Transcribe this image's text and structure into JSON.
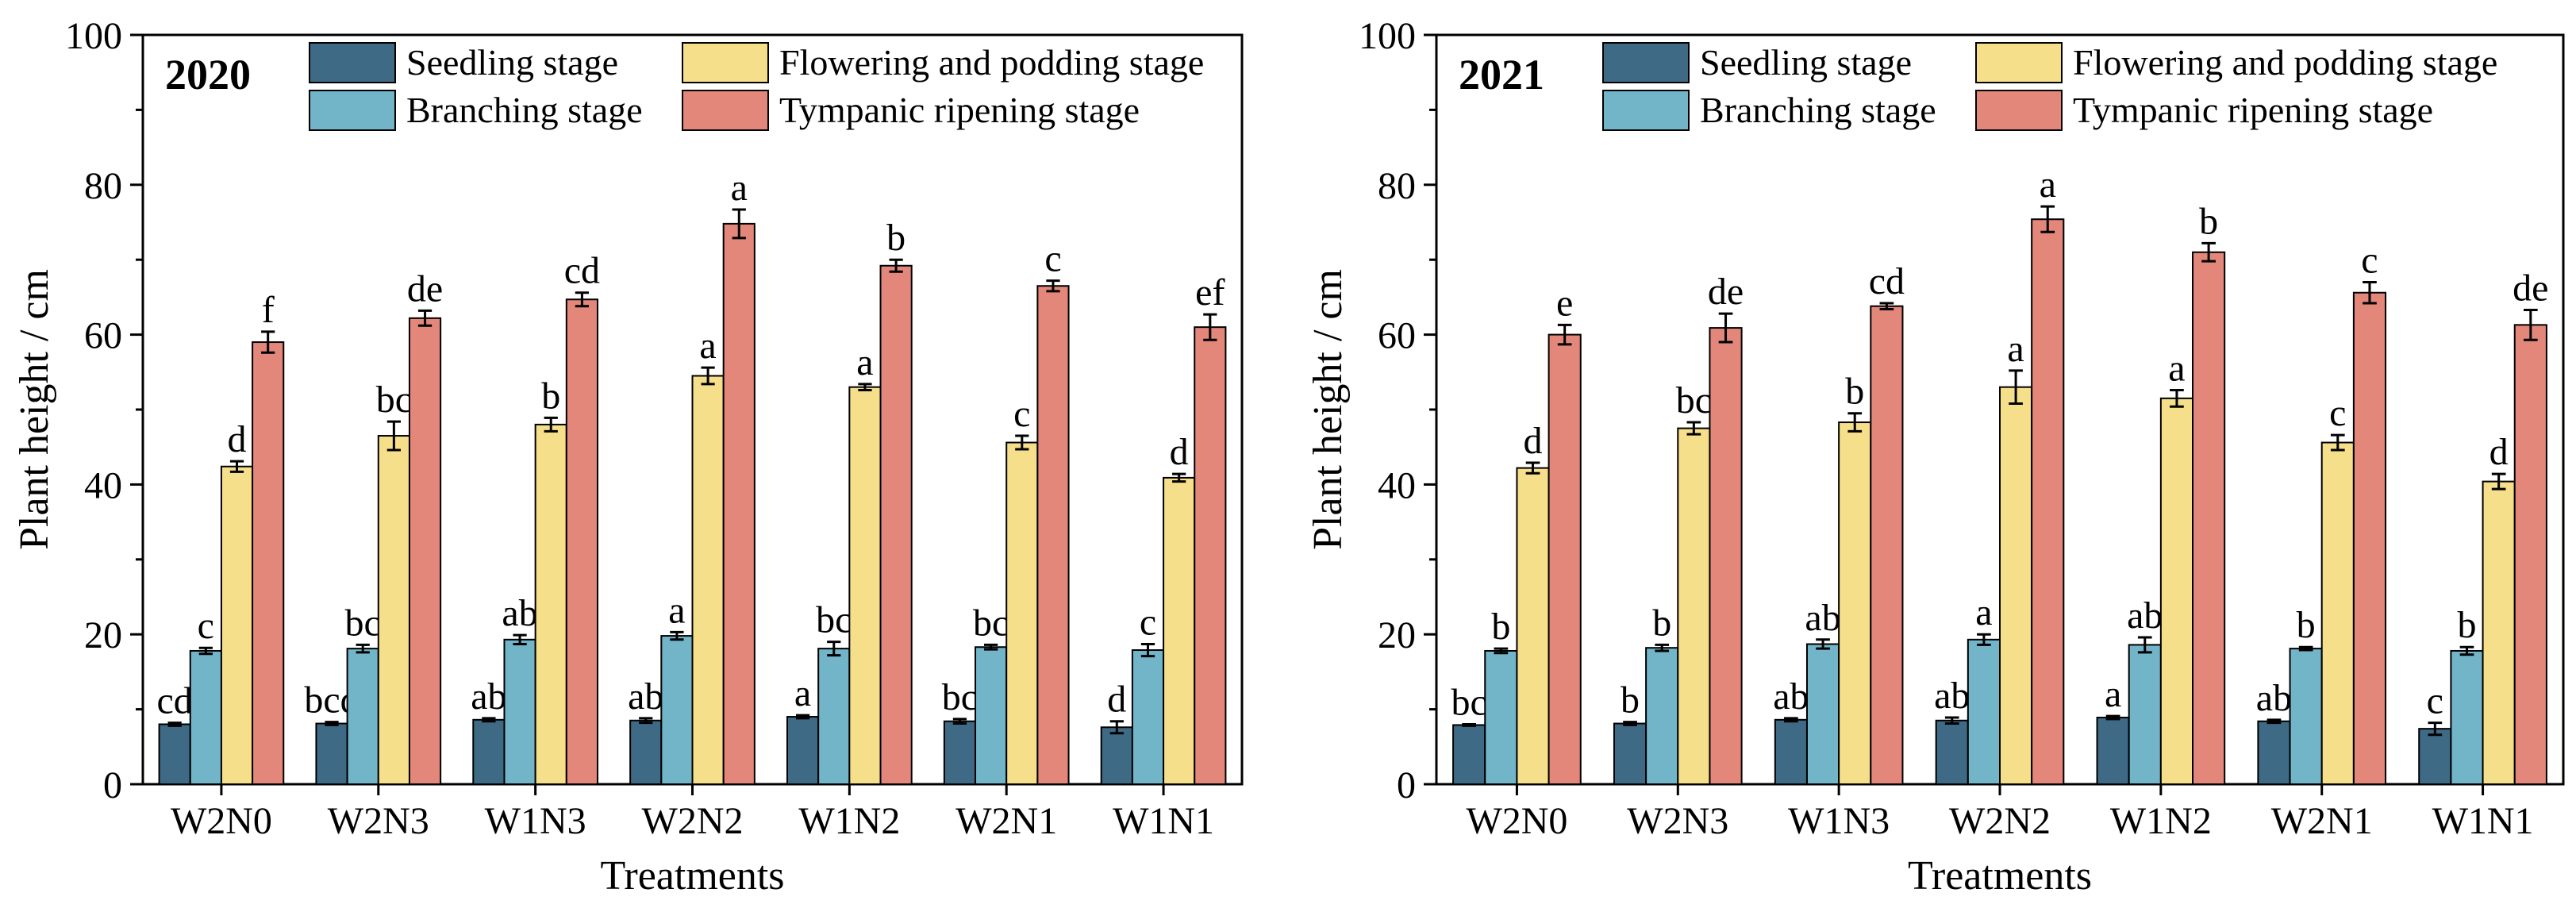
{
  "colors": {
    "Seedling stage": "#3f6a85",
    "Branching stage": "#72b5c9",
    "Flowering and podding stage": "#f6df8a",
    "Tympanic ripening stage": "#e3877a"
  },
  "chart_data": [
    {
      "type": "bar",
      "title": "2020",
      "xlabel": "Treatments",
      "ylabel": "Plant height / cm",
      "ylim": [
        0,
        100
      ],
      "yticks": [
        0,
        20,
        40,
        60,
        80,
        100
      ],
      "legend": "top",
      "categories": [
        "W2N0",
        "W2N3",
        "W1N3",
        "W2N2",
        "W1N2",
        "W2N1",
        "W1N1"
      ],
      "series": [
        {
          "name": "Seedling stage",
          "values": [
            8.0,
            8.1,
            8.6,
            8.5,
            9.0,
            8.4,
            7.6
          ],
          "errors": [
            0.2,
            0.2,
            0.2,
            0.3,
            0.2,
            0.3,
            0.8
          ],
          "labels": [
            "cd",
            "bcd",
            "ab",
            "ab",
            "a",
            "bc",
            "d"
          ]
        },
        {
          "name": "Branching stage",
          "values": [
            17.8,
            18.1,
            19.3,
            19.8,
            18.1,
            18.3,
            17.9
          ],
          "errors": [
            0.4,
            0.5,
            0.6,
            0.5,
            0.9,
            0.3,
            0.8
          ],
          "labels": [
            "c",
            "bc",
            "ab",
            "a",
            "bc",
            "bc",
            "c"
          ]
        },
        {
          "name": "Flowering and podding stage",
          "values": [
            42.4,
            46.5,
            48.0,
            54.5,
            53.0,
            45.6,
            40.9
          ],
          "errors": [
            0.7,
            1.9,
            0.9,
            1.1,
            0.4,
            0.9,
            0.5
          ],
          "labels": [
            "d",
            "bc",
            "b",
            "a",
            "a",
            "c",
            "d"
          ]
        },
        {
          "name": "Tympanic ripening stage",
          "values": [
            59.0,
            62.2,
            64.7,
            74.8,
            69.2,
            66.5,
            61.0
          ],
          "errors": [
            1.4,
            1.0,
            0.9,
            1.9,
            0.8,
            0.7,
            1.7
          ],
          "labels": [
            "f",
            "de",
            "cd",
            "a",
            "b",
            "c",
            "ef"
          ]
        }
      ]
    },
    {
      "type": "bar",
      "title": "2021",
      "xlabel": "Treatments",
      "ylabel": "Plant height / cm",
      "ylim": [
        0,
        100
      ],
      "yticks": [
        0,
        20,
        40,
        60,
        80,
        100
      ],
      "legend": "top",
      "categories": [
        "W2N0",
        "W2N3",
        "W1N3",
        "W2N2",
        "W1N2",
        "W2N1",
        "W1N1"
      ],
      "series": [
        {
          "name": "Seedling stage",
          "values": [
            7.9,
            8.1,
            8.6,
            8.5,
            8.9,
            8.4,
            7.4
          ],
          "errors": [
            0.1,
            0.2,
            0.2,
            0.4,
            0.2,
            0.2,
            0.8
          ],
          "labels": [
            "bc",
            "b",
            "ab",
            "ab",
            "a",
            "ab",
            "c"
          ]
        },
        {
          "name": "Branching stage",
          "values": [
            17.8,
            18.2,
            18.7,
            19.3,
            18.6,
            18.1,
            17.8
          ],
          "errors": [
            0.3,
            0.4,
            0.6,
            0.7,
            1.0,
            0.2,
            0.5
          ],
          "labels": [
            "b",
            "b",
            "ab",
            "a",
            "ab",
            "b",
            "b"
          ]
        },
        {
          "name": "Flowering and podding stage",
          "values": [
            42.2,
            47.5,
            48.3,
            53.0,
            51.5,
            45.6,
            40.4
          ],
          "errors": [
            0.7,
            0.8,
            1.2,
            2.2,
            1.1,
            1.0,
            1.0
          ],
          "labels": [
            "d",
            "bc",
            "b",
            "a",
            "a",
            "c",
            "d"
          ]
        },
        {
          "name": "Tympanic ripening stage",
          "values": [
            60.0,
            60.9,
            63.8,
            75.4,
            71.0,
            65.6,
            61.3
          ],
          "errors": [
            1.3,
            1.9,
            0.4,
            1.7,
            1.2,
            1.4,
            2.0
          ],
          "labels": [
            "e",
            "de",
            "cd",
            "a",
            "b",
            "c",
            "de"
          ]
        }
      ]
    }
  ]
}
